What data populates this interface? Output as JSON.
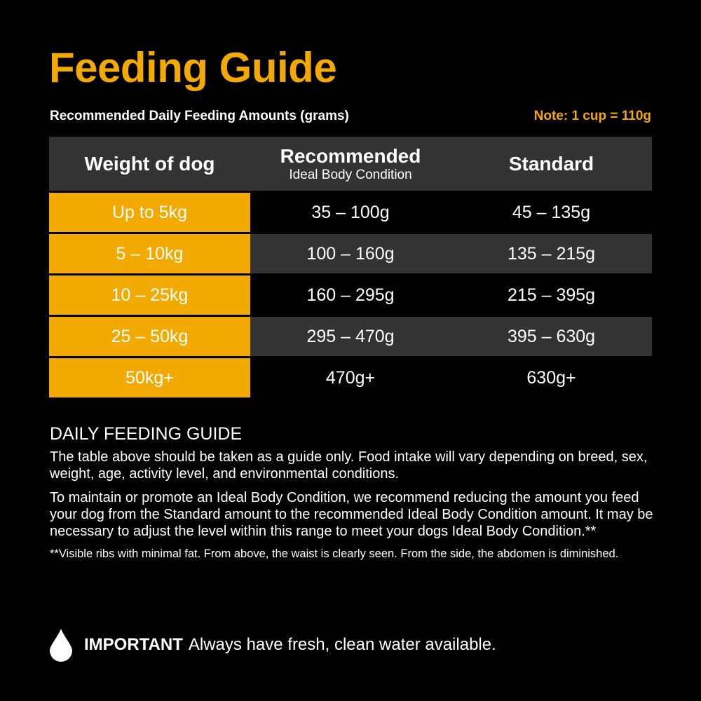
{
  "title": "Feeding Guide",
  "subtitle": "Recommended Daily Feeding Amounts (grams)",
  "note": "Note: 1 cup = 110g",
  "colors": {
    "accent": "#f2a900",
    "header_bg": "#333333",
    "background": "#000000"
  },
  "table": {
    "headers": {
      "weight": "Weight of dog",
      "recommended": "Recommended",
      "recommended_sub": "Ideal Body Condition",
      "standard": "Standard"
    },
    "rows": [
      {
        "weight": "Up to 5kg",
        "recommended": "35 – 100g",
        "standard": "45 – 135g"
      },
      {
        "weight": "5 – 10kg",
        "recommended": "100 – 160g",
        "standard": "135 – 215g"
      },
      {
        "weight": "10 – 25kg",
        "recommended": "160 – 295g",
        "standard": "215 – 395g"
      },
      {
        "weight": "25 – 50kg",
        "recommended": "295 – 470g",
        "standard": "395 – 630g"
      },
      {
        "weight": "50kg+",
        "recommended": "470g+",
        "standard": "630g+"
      }
    ]
  },
  "guide": {
    "heading": "DAILY FEEDING GUIDE",
    "p1": "The table above should be taken as a guide only. Food intake will vary depending on breed, sex, weight, age, activity level, and environmental conditions.",
    "p2": "To maintain or promote an Ideal Body Condition, we recommend reducing the amount you feed your dog from the Standard amount to the recommended Ideal Body Condition amount. It may be necessary to adjust the level within this range to meet your dogs Ideal Body Condition.**",
    "footnote": "**Visible ribs with minimal fat. From above, the waist is clearly seen. From the side, the abdomen is diminished."
  },
  "important": {
    "icon": "water-drop-icon",
    "label": "IMPORTANT",
    "text": "Always have fresh, clean water available."
  }
}
